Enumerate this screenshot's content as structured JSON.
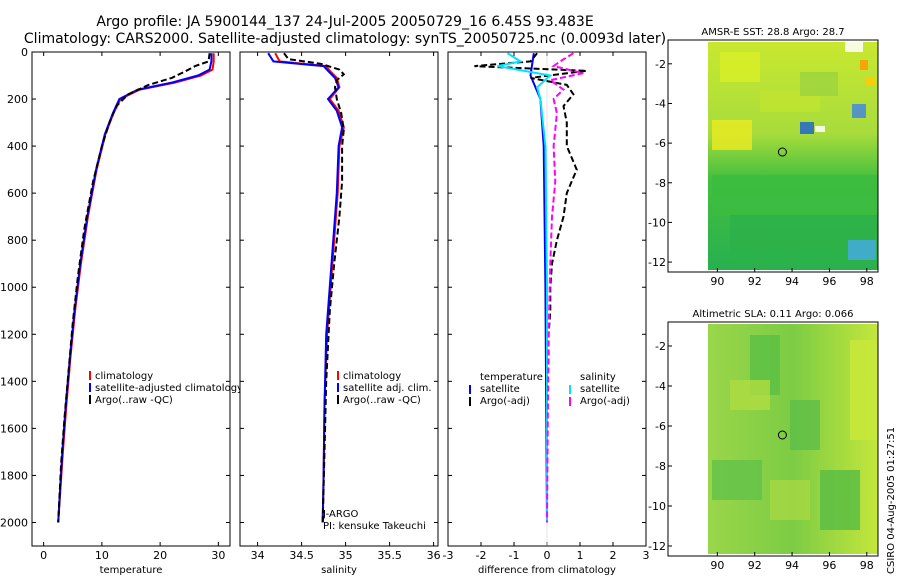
{
  "header": {
    "line1": "Argo profile: JA 5900144_137 24-Jul-2005 20050729_16 6.45S 93.483E",
    "line2": "Climatology: CARS2000. Satellite-adjusted climatology: synTS_20050725.nc (0.0093d later)"
  },
  "footer": {
    "credit": "CSIRO 04-Aug-2005 01:27:51"
  },
  "colors": {
    "climatology": "#ff0000",
    "satellite": "#0000ff",
    "argo": "#000000",
    "sal_satellite": "#00e0ff",
    "sal_argo": "#ff00ff"
  },
  "chart_data": [
    {
      "type": "line",
      "id": "temperature",
      "xlabel": "temperature",
      "ylabel": "",
      "xlim": [
        -2,
        32
      ],
      "ylim": [
        2100,
        0
      ],
      "xticks": [
        "0",
        "10",
        "20",
        "30"
      ],
      "yticks": [
        "0",
        "200",
        "400",
        "600",
        "800",
        "1000",
        "1200",
        "1400",
        "1600",
        "1800",
        "2000"
      ],
      "legend": [
        "climatology",
        "satellite-adjusted climatology",
        "Argo(..raw -QC)"
      ],
      "series": [
        {
          "name": "climatology",
          "depth": [
            5,
            40,
            75,
            100,
            130,
            160,
            200,
            260,
            350,
            500,
            700,
            900,
            1100,
            1300,
            1500,
            1700,
            2000
          ],
          "values": [
            29.2,
            29.2,
            29.0,
            27.0,
            22.5,
            16.5,
            13.2,
            12.0,
            10.6,
            9.1,
            7.6,
            6.4,
            5.4,
            4.6,
            3.9,
            3.3,
            2.5
          ]
        },
        {
          "name": "satellite-adjusted climatology",
          "depth": [
            5,
            40,
            75,
            100,
            130,
            160,
            200,
            260,
            350,
            500,
            700,
            900,
            1100,
            1300,
            1500,
            1700,
            2000
          ],
          "values": [
            28.8,
            28.8,
            28.5,
            26.5,
            22.0,
            16.2,
            13.0,
            11.9,
            10.5,
            9.0,
            7.5,
            6.3,
            5.3,
            4.5,
            3.8,
            3.2,
            2.5
          ]
        },
        {
          "name": "Argo(..raw -QC)",
          "depth": [
            5,
            40,
            60,
            80,
            110,
            140,
            180,
            230,
            300,
            400,
            550,
            750,
            950,
            1150,
            1350,
            1550,
            1750,
            2000
          ],
          "values": [
            28.5,
            28.3,
            26.0,
            24.5,
            22.0,
            18.0,
            14.5,
            12.5,
            11.3,
            10.0,
            8.5,
            7.0,
            5.9,
            5.0,
            4.3,
            3.6,
            3.0,
            2.5
          ]
        }
      ]
    },
    {
      "type": "line",
      "id": "salinity",
      "xlabel": "salinity",
      "xlim": [
        33.8,
        36.05
      ],
      "ylim": [
        2100,
        0
      ],
      "xticks": [
        "34",
        "34.5",
        "35",
        "35.5",
        "36"
      ],
      "legend": [
        "climatology",
        "satellite adj. clim.",
        "Argo(..raw -QC)"
      ],
      "annotations": [
        "J-ARGO",
        "PI: kensuke Takeuchi"
      ],
      "series": [
        {
          "name": "climatology",
          "depth": [
            5,
            40,
            60,
            80,
            110,
            150,
            200,
            250,
            320,
            400,
            600,
            900,
            1200,
            1500,
            1800,
            2000
          ],
          "values": [
            34.2,
            34.25,
            34.78,
            34.82,
            34.9,
            34.93,
            34.82,
            34.92,
            34.98,
            34.93,
            34.91,
            34.85,
            34.79,
            34.76,
            34.75,
            34.74
          ]
        },
        {
          "name": "satellite adj. clim.",
          "depth": [
            5,
            40,
            60,
            80,
            110,
            150,
            200,
            250,
            320,
            400,
            600,
            900,
            1200,
            1500,
            1800,
            2000
          ],
          "values": [
            34.12,
            34.18,
            34.75,
            34.8,
            34.88,
            34.92,
            34.8,
            34.9,
            34.96,
            34.92,
            34.9,
            34.84,
            34.78,
            34.76,
            34.75,
            34.74
          ]
        },
        {
          "name": "Argo(..raw -QC)",
          "depth": [
            5,
            30,
            50,
            75,
            95,
            120,
            150,
            200,
            260,
            330,
            400,
            550,
            700,
            900,
            1100,
            1400,
            1700,
            2000
          ],
          "values": [
            34.3,
            34.35,
            34.72,
            34.93,
            34.98,
            34.9,
            34.88,
            34.9,
            34.95,
            34.98,
            34.96,
            34.96,
            34.93,
            34.87,
            34.82,
            34.78,
            34.76,
            34.74
          ]
        }
      ]
    },
    {
      "type": "line",
      "id": "difference",
      "xlabel": "difference from climatology",
      "xlim": [
        -3,
        3
      ],
      "ylim": [
        2100,
        0
      ],
      "xticks": [
        "-3",
        "-2",
        "-1",
        "0",
        "1",
        "2",
        "3"
      ],
      "legend": [
        "temperature",
        "satellite",
        "Argo(-adj)",
        "salinity",
        "satellite",
        "Argo(-adj)"
      ],
      "series": [
        {
          "name": "temperature satellite",
          "depth": [
            5,
            100,
            200,
            400,
            1000,
            2000
          ],
          "values": [
            -0.4,
            -0.5,
            -0.2,
            -0.1,
            -0.05,
            0
          ]
        },
        {
          "name": "temperature Argo(-adj)",
          "depth": [
            5,
            40,
            60,
            80,
            110,
            140,
            180,
            230,
            300,
            400,
            500,
            600,
            700,
            800,
            900,
            1000,
            1100,
            1200,
            1300,
            1400,
            1600,
            2000
          ],
          "values": [
            -0.3,
            -0.5,
            -2.2,
            1.2,
            -0.5,
            0.6,
            0.8,
            0.5,
            0.6,
            0.6,
            0.9,
            0.6,
            0.5,
            0.3,
            0.15,
            0.1,
            0.1,
            0.05,
            0.05,
            0.02,
            0,
            0
          ]
        },
        {
          "name": "salinity satellite",
          "depth": [
            5,
            40,
            60,
            100,
            150,
            200,
            400,
            1000,
            2000
          ],
          "values": [
            -1.2,
            -0.8,
            -1.5,
            0.1,
            -0.3,
            -0.2,
            -0.05,
            0,
            0
          ]
        },
        {
          "name": "salinity Argo(-adj)",
          "depth": [
            5,
            40,
            60,
            90,
            120,
            160,
            200,
            260,
            330,
            400,
            550,
            700,
            900,
            1200,
            1600,
            2000
          ],
          "values": [
            0.8,
            0.4,
            0.2,
            1.1,
            0.1,
            0.5,
            0.2,
            0.3,
            0.25,
            0.2,
            0.25,
            0.15,
            0.1,
            0.05,
            0.02,
            0
          ]
        }
      ]
    },
    {
      "type": "heatmap",
      "id": "sst-map",
      "title": "AMSR-E SST: 28.8 Argo: 28.7",
      "xlim": [
        89.5,
        98.6
      ],
      "ylim": [
        -12.4,
        -0.9
      ],
      "xticks": [
        "90",
        "92",
        "94",
        "96",
        "98"
      ],
      "yticks": [
        "-2",
        "-4",
        "-6",
        "-8",
        "-10",
        "-12"
      ],
      "marker": {
        "lon": 93.483,
        "lat": -6.45
      }
    },
    {
      "type": "heatmap",
      "id": "sla-map",
      "title": "Altimetric SLA: 0.11 Argo: 0.066",
      "xlim": [
        89.5,
        98.6
      ],
      "ylim": [
        -12.4,
        -0.9
      ],
      "xticks": [
        "90",
        "92",
        "94",
        "96",
        "98"
      ],
      "yticks": [
        "-2",
        "-4",
        "-6",
        "-8",
        "-10",
        "-12"
      ],
      "marker": {
        "lon": 93.483,
        "lat": -6.45
      }
    }
  ]
}
